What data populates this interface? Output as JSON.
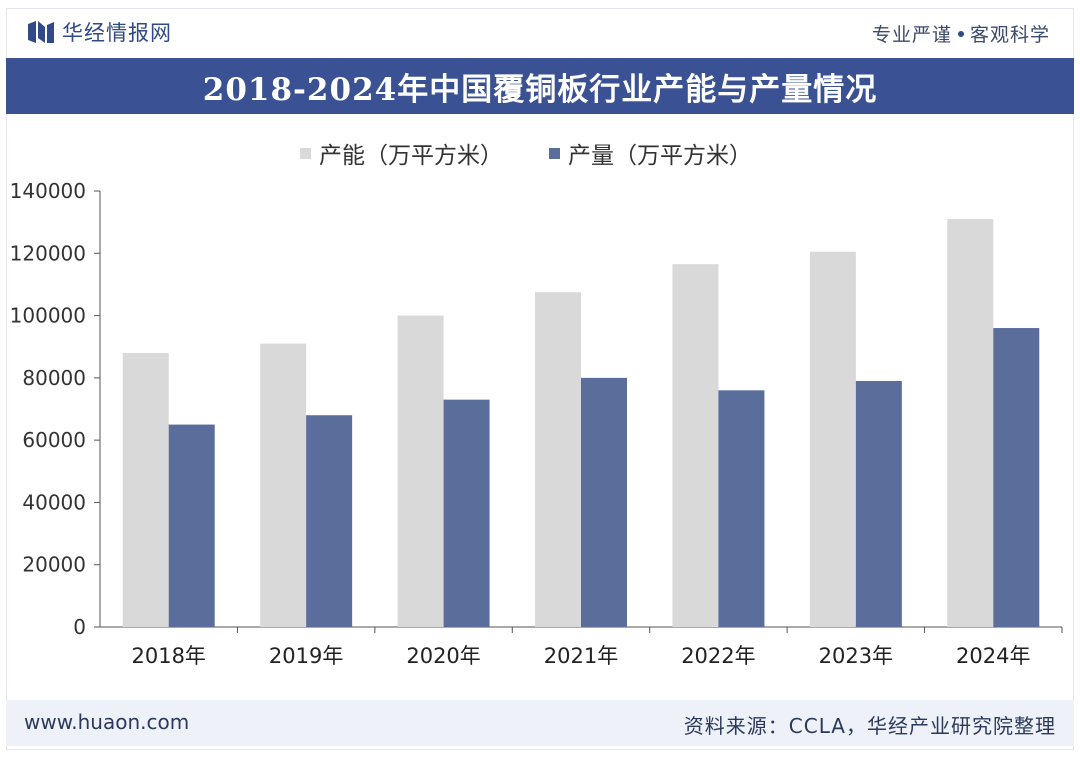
{
  "header": {
    "brand": "华经情报网",
    "slogan_left": "专业严谨",
    "slogan_right": "客观科学"
  },
  "footer": {
    "url": "www.huaon.com",
    "source": "资料来源：CCLA，华经产业研究院整理"
  },
  "colors": {
    "capacity": "#d9d9d9",
    "output": "#5b6e9b",
    "title_bg": "#3a5293"
  },
  "chart_data": {
    "type": "bar",
    "title": "2018-2024年中国覆铜板行业产能与产量情况",
    "categories": [
      "2018年",
      "2019年",
      "2020年",
      "2021年",
      "2022年",
      "2023年",
      "2024年"
    ],
    "series": [
      {
        "name": "产能（万平方米）",
        "values": [
          88000,
          91000,
          100000,
          107500,
          116500,
          120500,
          131000
        ]
      },
      {
        "name": "产量（万平方米）",
        "values": [
          65000,
          68000,
          73000,
          80000,
          76000,
          79000,
          96000
        ]
      }
    ],
    "ylim": [
      0,
      140000
    ],
    "yticks": [
      "0",
      "20000",
      "40000",
      "60000",
      "80000",
      "100000",
      "120000",
      "140000"
    ],
    "xlabel": "",
    "ylabel": "",
    "legend": "top-center"
  }
}
